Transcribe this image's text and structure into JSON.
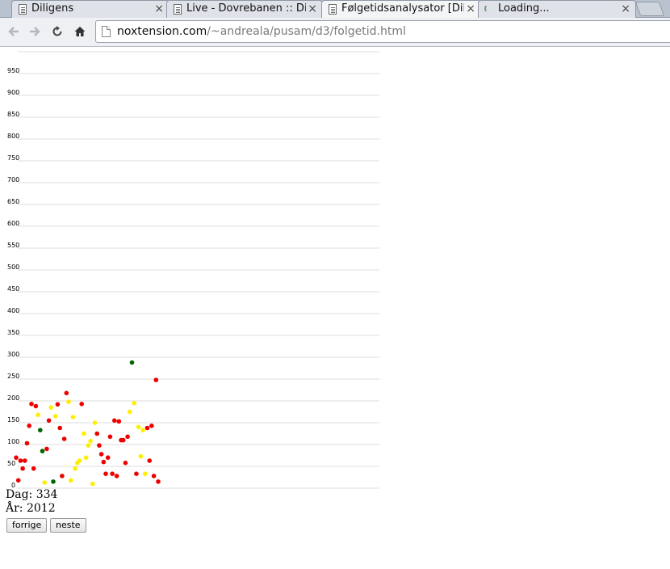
{
  "browser": {
    "tabs": [
      {
        "title": "Diligens",
        "active": false,
        "loading": false
      },
      {
        "title": "Live - Dovrebanen :: Dil",
        "active": false,
        "loading": false
      },
      {
        "title": "Følgetidsanalysator [Dil",
        "active": true,
        "loading": false
      },
      {
        "title": "Loading...",
        "active": false,
        "loading": true
      }
    ],
    "close_glyph": "×",
    "url_host": "noxtension.com",
    "url_path": "/~andreala/pusam/d3/folgetid.html",
    "nav_icons": [
      "back-arrow-icon",
      "forward-arrow-icon",
      "reload-icon",
      "home-icon"
    ]
  },
  "page": {
    "day_text": "Dag: 334",
    "year_text": "År: 2012",
    "prev_label": "forrige",
    "next_label": "neste"
  },
  "chart_data": {
    "type": "scatter",
    "title": "",
    "xlabel": "",
    "ylabel": "",
    "ylim": [
      0,
      1000
    ],
    "yticks": [
      0,
      50,
      100,
      150,
      200,
      250,
      300,
      350,
      400,
      450,
      500,
      550,
      600,
      650,
      700,
      750,
      800,
      850,
      900,
      950
    ],
    "grid": true,
    "colors": {
      "red": "#ee0000",
      "yellow": "#ffee00",
      "green": "#006600"
    },
    "points": [
      {
        "x": 1,
        "y": 70,
        "color": "red"
      },
      {
        "x": 2,
        "y": 18,
        "color": "red"
      },
      {
        "x": 3,
        "y": 63,
        "color": "red"
      },
      {
        "x": 4,
        "y": 45,
        "color": "red"
      },
      {
        "x": 5,
        "y": 63,
        "color": "red"
      },
      {
        "x": 6,
        "y": 103,
        "color": "red"
      },
      {
        "x": 7,
        "y": 143,
        "color": "red"
      },
      {
        "x": 8,
        "y": 193,
        "color": "red"
      },
      {
        "x": 9,
        "y": 45,
        "color": "red"
      },
      {
        "x": 10,
        "y": 188,
        "color": "red"
      },
      {
        "x": 11,
        "y": 168,
        "color": "yellow"
      },
      {
        "x": 12,
        "y": 133,
        "color": "green"
      },
      {
        "x": 13,
        "y": 85,
        "color": "green"
      },
      {
        "x": 14,
        "y": 13,
        "color": "yellow"
      },
      {
        "x": 15,
        "y": 90,
        "color": "red"
      },
      {
        "x": 16,
        "y": 155,
        "color": "red"
      },
      {
        "x": 17,
        "y": 185,
        "color": "yellow"
      },
      {
        "x": 18,
        "y": 15,
        "color": "green"
      },
      {
        "x": 19,
        "y": 165,
        "color": "yellow"
      },
      {
        "x": 20,
        "y": 192,
        "color": "red"
      },
      {
        "x": 21,
        "y": 138,
        "color": "red"
      },
      {
        "x": 22,
        "y": 28,
        "color": "red"
      },
      {
        "x": 23,
        "y": 113,
        "color": "red"
      },
      {
        "x": 24,
        "y": 218,
        "color": "red"
      },
      {
        "x": 25,
        "y": 198,
        "color": "yellow"
      },
      {
        "x": 26,
        "y": 18,
        "color": "yellow"
      },
      {
        "x": 27,
        "y": 163,
        "color": "yellow"
      },
      {
        "x": 28,
        "y": 45,
        "color": "yellow"
      },
      {
        "x": 29,
        "y": 58,
        "color": "yellow"
      },
      {
        "x": 30,
        "y": 63,
        "color": "yellow"
      },
      {
        "x": 31,
        "y": 193,
        "color": "red"
      },
      {
        "x": 32,
        "y": 125,
        "color": "yellow"
      },
      {
        "x": 33,
        "y": 70,
        "color": "yellow"
      },
      {
        "x": 34,
        "y": 98,
        "color": "yellow"
      },
      {
        "x": 35,
        "y": 108,
        "color": "yellow"
      },
      {
        "x": 36,
        "y": 10,
        "color": "yellow"
      },
      {
        "x": 37,
        "y": 150,
        "color": "yellow"
      },
      {
        "x": 38,
        "y": 125,
        "color": "red"
      },
      {
        "x": 39,
        "y": 98,
        "color": "red"
      },
      {
        "x": 40,
        "y": 78,
        "color": "red"
      },
      {
        "x": 41,
        "y": 60,
        "color": "red"
      },
      {
        "x": 42,
        "y": 33,
        "color": "red"
      },
      {
        "x": 43,
        "y": 70,
        "color": "red"
      },
      {
        "x": 44,
        "y": 118,
        "color": "red"
      },
      {
        "x": 45,
        "y": 33,
        "color": "red"
      },
      {
        "x": 46,
        "y": 155,
        "color": "red"
      },
      {
        "x": 47,
        "y": 28,
        "color": "red"
      },
      {
        "x": 48,
        "y": 153,
        "color": "red"
      },
      {
        "x": 49,
        "y": 110,
        "color": "red"
      },
      {
        "x": 50,
        "y": 110,
        "color": "red"
      },
      {
        "x": 51,
        "y": 58,
        "color": "red"
      },
      {
        "x": 52,
        "y": 118,
        "color": "red"
      },
      {
        "x": 53,
        "y": 175,
        "color": "yellow"
      },
      {
        "x": 54,
        "y": 288,
        "color": "green"
      },
      {
        "x": 55,
        "y": 195,
        "color": "yellow"
      },
      {
        "x": 56,
        "y": 33,
        "color": "red"
      },
      {
        "x": 57,
        "y": 140,
        "color": "yellow"
      },
      {
        "x": 58,
        "y": 73,
        "color": "yellow"
      },
      {
        "x": 59,
        "y": 133,
        "color": "yellow"
      },
      {
        "x": 60,
        "y": 33,
        "color": "yellow"
      },
      {
        "x": 61,
        "y": 138,
        "color": "red"
      },
      {
        "x": 62,
        "y": 63,
        "color": "red"
      },
      {
        "x": 63,
        "y": 143,
        "color": "red"
      },
      {
        "x": 64,
        "y": 28,
        "color": "red"
      },
      {
        "x": 65,
        "y": 248,
        "color": "red"
      },
      {
        "x": 66,
        "y": 15,
        "color": "red"
      }
    ]
  }
}
